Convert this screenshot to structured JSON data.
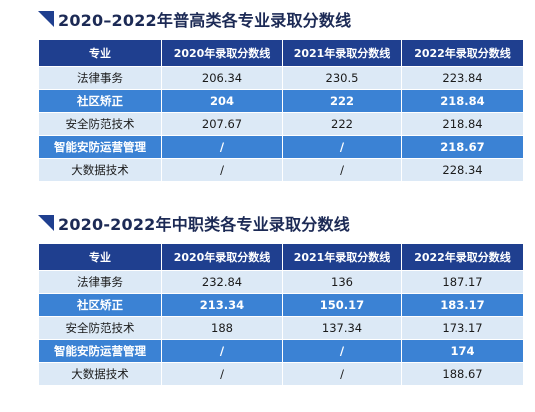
{
  "sections": [
    {
      "title": "2020–2022年普高类各专业录取分数线",
      "headers": [
        "专业",
        "2020年录取分数线",
        "2021年录取分数线",
        "2022年录取分数线"
      ],
      "rows": [
        {
          "major": "法律事务",
          "y2020": "206.34",
          "y2021": "230.5",
          "y2022": "223.84"
        },
        {
          "major": "社区矫正",
          "y2020": "204",
          "y2021": "222",
          "y2022": "218.84"
        },
        {
          "major": "安全防范技术",
          "y2020": "207.67",
          "y2021": "222",
          "y2022": "218.84"
        },
        {
          "major": "智能安防运营管理",
          "y2020": "/",
          "y2021": "/",
          "y2022": "218.67"
        },
        {
          "major": "大数据技术",
          "y2020": "/",
          "y2021": "/",
          "y2022": "228.34"
        }
      ]
    },
    {
      "title": "2020-2022年中职类各专业录取分数线",
      "headers": [
        "专业",
        "2020年录取分数线",
        "2021年录取分数线",
        "2022年录取分数线"
      ],
      "rows": [
        {
          "major": "法律事务",
          "y2020": "232.84",
          "y2021": "136",
          "y2022": "187.17"
        },
        {
          "major": "社区矫正",
          "y2020": "213.34",
          "y2021": "150.17",
          "y2022": "183.17"
        },
        {
          "major": "安全防范技术",
          "y2020": "188",
          "y2021": "137.34",
          "y2022": "173.17"
        },
        {
          "major": "智能安防运营管理",
          "y2020": "/",
          "y2021": "/",
          "y2022": "174"
        },
        {
          "major": "大数据技术",
          "y2020": "/",
          "y2021": "/",
          "y2022": "188.67"
        }
      ]
    }
  ],
  "colors": {
    "header_bg": "#1f3f8f",
    "row_light": "#dce9f6",
    "row_dark": "#3b82d4",
    "title_text": "#1c2a55"
  }
}
